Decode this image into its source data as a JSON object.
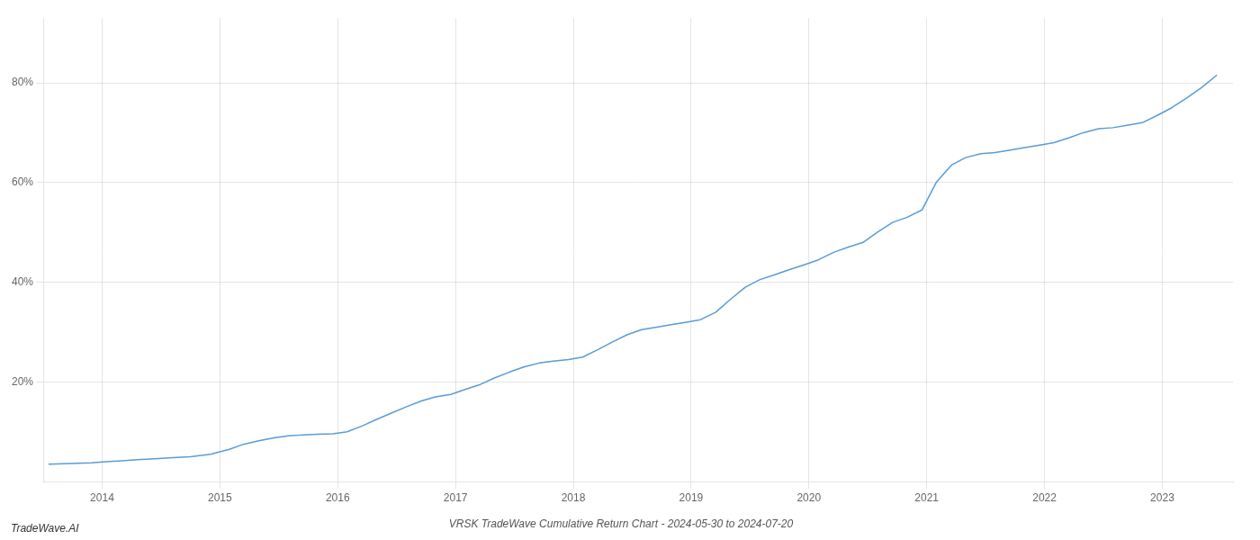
{
  "chart_data": {
    "type": "line",
    "title": "VRSK TradeWave Cumulative Return Chart - 2024-05-30 to 2024-07-20",
    "annotations": [
      {
        "text": "TradeWave.AI"
      }
    ],
    "x": [
      2013.55,
      2013.67,
      2013.79,
      2013.91,
      2014.03,
      2014.17,
      2014.3,
      2014.45,
      2014.6,
      2014.75,
      2014.92,
      2015.08,
      2015.2,
      2015.33,
      2015.46,
      2015.58,
      2015.71,
      2015.83,
      2015.96,
      2016.08,
      2016.21,
      2016.33,
      2016.46,
      2016.58,
      2016.71,
      2016.83,
      2016.96,
      2017.08,
      2017.21,
      2017.33,
      2017.46,
      2017.58,
      2017.71,
      2017.83,
      2017.96,
      2018.08,
      2018.21,
      2018.33,
      2018.46,
      2018.58,
      2018.71,
      2018.83,
      2018.96,
      2019.08,
      2019.21,
      2019.33,
      2019.46,
      2019.58,
      2019.71,
      2019.83,
      2019.96,
      2020.08,
      2020.21,
      2020.33,
      2020.46,
      2020.58,
      2020.71,
      2020.83,
      2020.96,
      2021.08,
      2021.21,
      2021.33,
      2021.46,
      2021.58,
      2021.71,
      2021.83,
      2021.96,
      2022.08,
      2022.21,
      2022.33,
      2022.46,
      2022.58,
      2022.71,
      2022.83,
      2022.96,
      2023.08,
      2023.21,
      2023.33,
      2023.46
    ],
    "series": [
      {
        "color": "#5b9bd5",
        "values": [
          3.5,
          3.6,
          3.7,
          3.8,
          4.0,
          4.2,
          4.4,
          4.6,
          4.8,
          5.0,
          5.5,
          6.5,
          7.5,
          8.2,
          8.8,
          9.2,
          9.4,
          9.5,
          9.6,
          10.0,
          11.2,
          12.5,
          13.8,
          15.0,
          16.2,
          17.0,
          17.5,
          18.5,
          19.5,
          20.8,
          22.0,
          23.0,
          23.8,
          24.2,
          24.5,
          25.0,
          26.5,
          28.0,
          29.5,
          30.5,
          31.0,
          31.5,
          32.0,
          32.5,
          34.0,
          36.5,
          39.0,
          40.5,
          41.5,
          42.5,
          43.5,
          44.5,
          46.0,
          47.0,
          48.0,
          50.0,
          52.0,
          53.0,
          54.5,
          60.0,
          63.5,
          65.0,
          65.8,
          66.0,
          66.5,
          67.0,
          67.5,
          68.0,
          69.0,
          70.0,
          70.8,
          71.0,
          71.5,
          72.0,
          73.5,
          75.0,
          77.0,
          79.0,
          81.5
        ]
      }
    ],
    "xlim": [
      2013.5,
      2023.6
    ],
    "xticks": [
      2014,
      2015,
      2016,
      2017,
      2018,
      2019,
      2020,
      2021,
      2022,
      2023
    ],
    "ylim": [
      0,
      93
    ],
    "yticks": [
      {
        "value": 20,
        "label": "20%"
      },
      {
        "value": 40,
        "label": "40%"
      },
      {
        "value": 60,
        "label": "60%"
      },
      {
        "value": 80,
        "label": "80%"
      }
    ],
    "grid": true
  }
}
